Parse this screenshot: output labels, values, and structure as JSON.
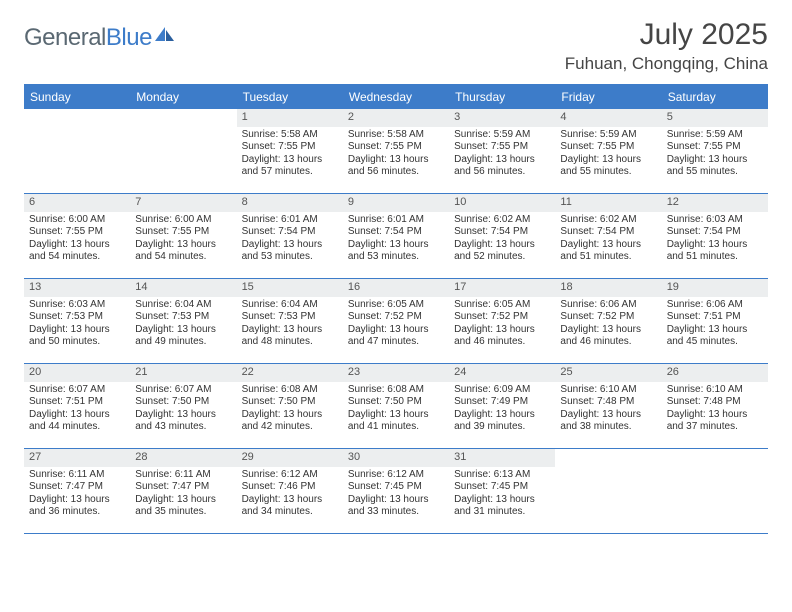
{
  "logo": {
    "text1": "General",
    "text2": "Blue"
  },
  "title": "July 2025",
  "location": "Fuhuan, Chongqing, China",
  "colors": {
    "header_bar": "#3d7cc9",
    "daynum_bg": "#eceeef",
    "text_dark": "#454545",
    "logo_gray": "#6b7a87",
    "logo_blue": "#3d7cc9"
  },
  "weekdays": [
    "Sunday",
    "Monday",
    "Tuesday",
    "Wednesday",
    "Thursday",
    "Friday",
    "Saturday"
  ],
  "weeks": [
    [
      {
        "n": "",
        "sr": "",
        "ss": "",
        "dl": ""
      },
      {
        "n": "",
        "sr": "",
        "ss": "",
        "dl": ""
      },
      {
        "n": "1",
        "sr": "Sunrise: 5:58 AM",
        "ss": "Sunset: 7:55 PM",
        "dl": "Daylight: 13 hours and 57 minutes."
      },
      {
        "n": "2",
        "sr": "Sunrise: 5:58 AM",
        "ss": "Sunset: 7:55 PM",
        "dl": "Daylight: 13 hours and 56 minutes."
      },
      {
        "n": "3",
        "sr": "Sunrise: 5:59 AM",
        "ss": "Sunset: 7:55 PM",
        "dl": "Daylight: 13 hours and 56 minutes."
      },
      {
        "n": "4",
        "sr": "Sunrise: 5:59 AM",
        "ss": "Sunset: 7:55 PM",
        "dl": "Daylight: 13 hours and 55 minutes."
      },
      {
        "n": "5",
        "sr": "Sunrise: 5:59 AM",
        "ss": "Sunset: 7:55 PM",
        "dl": "Daylight: 13 hours and 55 minutes."
      }
    ],
    [
      {
        "n": "6",
        "sr": "Sunrise: 6:00 AM",
        "ss": "Sunset: 7:55 PM",
        "dl": "Daylight: 13 hours and 54 minutes."
      },
      {
        "n": "7",
        "sr": "Sunrise: 6:00 AM",
        "ss": "Sunset: 7:55 PM",
        "dl": "Daylight: 13 hours and 54 minutes."
      },
      {
        "n": "8",
        "sr": "Sunrise: 6:01 AM",
        "ss": "Sunset: 7:54 PM",
        "dl": "Daylight: 13 hours and 53 minutes."
      },
      {
        "n": "9",
        "sr": "Sunrise: 6:01 AM",
        "ss": "Sunset: 7:54 PM",
        "dl": "Daylight: 13 hours and 53 minutes."
      },
      {
        "n": "10",
        "sr": "Sunrise: 6:02 AM",
        "ss": "Sunset: 7:54 PM",
        "dl": "Daylight: 13 hours and 52 minutes."
      },
      {
        "n": "11",
        "sr": "Sunrise: 6:02 AM",
        "ss": "Sunset: 7:54 PM",
        "dl": "Daylight: 13 hours and 51 minutes."
      },
      {
        "n": "12",
        "sr": "Sunrise: 6:03 AM",
        "ss": "Sunset: 7:54 PM",
        "dl": "Daylight: 13 hours and 51 minutes."
      }
    ],
    [
      {
        "n": "13",
        "sr": "Sunrise: 6:03 AM",
        "ss": "Sunset: 7:53 PM",
        "dl": "Daylight: 13 hours and 50 minutes."
      },
      {
        "n": "14",
        "sr": "Sunrise: 6:04 AM",
        "ss": "Sunset: 7:53 PM",
        "dl": "Daylight: 13 hours and 49 minutes."
      },
      {
        "n": "15",
        "sr": "Sunrise: 6:04 AM",
        "ss": "Sunset: 7:53 PM",
        "dl": "Daylight: 13 hours and 48 minutes."
      },
      {
        "n": "16",
        "sr": "Sunrise: 6:05 AM",
        "ss": "Sunset: 7:52 PM",
        "dl": "Daylight: 13 hours and 47 minutes."
      },
      {
        "n": "17",
        "sr": "Sunrise: 6:05 AM",
        "ss": "Sunset: 7:52 PM",
        "dl": "Daylight: 13 hours and 46 minutes."
      },
      {
        "n": "18",
        "sr": "Sunrise: 6:06 AM",
        "ss": "Sunset: 7:52 PM",
        "dl": "Daylight: 13 hours and 46 minutes."
      },
      {
        "n": "19",
        "sr": "Sunrise: 6:06 AM",
        "ss": "Sunset: 7:51 PM",
        "dl": "Daylight: 13 hours and 45 minutes."
      }
    ],
    [
      {
        "n": "20",
        "sr": "Sunrise: 6:07 AM",
        "ss": "Sunset: 7:51 PM",
        "dl": "Daylight: 13 hours and 44 minutes."
      },
      {
        "n": "21",
        "sr": "Sunrise: 6:07 AM",
        "ss": "Sunset: 7:50 PM",
        "dl": "Daylight: 13 hours and 43 minutes."
      },
      {
        "n": "22",
        "sr": "Sunrise: 6:08 AM",
        "ss": "Sunset: 7:50 PM",
        "dl": "Daylight: 13 hours and 42 minutes."
      },
      {
        "n": "23",
        "sr": "Sunrise: 6:08 AM",
        "ss": "Sunset: 7:50 PM",
        "dl": "Daylight: 13 hours and 41 minutes."
      },
      {
        "n": "24",
        "sr": "Sunrise: 6:09 AM",
        "ss": "Sunset: 7:49 PM",
        "dl": "Daylight: 13 hours and 39 minutes."
      },
      {
        "n": "25",
        "sr": "Sunrise: 6:10 AM",
        "ss": "Sunset: 7:48 PM",
        "dl": "Daylight: 13 hours and 38 minutes."
      },
      {
        "n": "26",
        "sr": "Sunrise: 6:10 AM",
        "ss": "Sunset: 7:48 PM",
        "dl": "Daylight: 13 hours and 37 minutes."
      }
    ],
    [
      {
        "n": "27",
        "sr": "Sunrise: 6:11 AM",
        "ss": "Sunset: 7:47 PM",
        "dl": "Daylight: 13 hours and 36 minutes."
      },
      {
        "n": "28",
        "sr": "Sunrise: 6:11 AM",
        "ss": "Sunset: 7:47 PM",
        "dl": "Daylight: 13 hours and 35 minutes."
      },
      {
        "n": "29",
        "sr": "Sunrise: 6:12 AM",
        "ss": "Sunset: 7:46 PM",
        "dl": "Daylight: 13 hours and 34 minutes."
      },
      {
        "n": "30",
        "sr": "Sunrise: 6:12 AM",
        "ss": "Sunset: 7:45 PM",
        "dl": "Daylight: 13 hours and 33 minutes."
      },
      {
        "n": "31",
        "sr": "Sunrise: 6:13 AM",
        "ss": "Sunset: 7:45 PM",
        "dl": "Daylight: 13 hours and 31 minutes."
      },
      {
        "n": "",
        "sr": "",
        "ss": "",
        "dl": ""
      },
      {
        "n": "",
        "sr": "",
        "ss": "",
        "dl": ""
      }
    ]
  ]
}
